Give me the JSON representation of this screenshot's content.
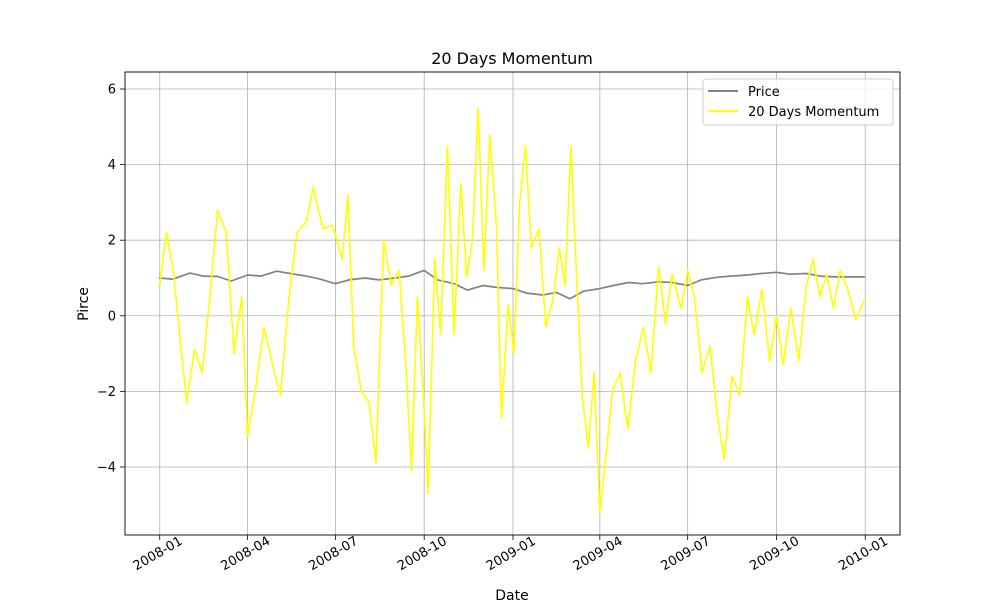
{
  "chart_data": {
    "type": "line",
    "title": "20 Days Momentum",
    "xlabel": "Date",
    "ylabel": "Pirce",
    "xlim": [
      "2007-11-26",
      "2010-02-06"
    ],
    "ylim": [
      -5.8,
      6.45
    ],
    "grid": true,
    "legend_position": "top-right",
    "x_ticks": [
      "2008-01",
      "2008-04",
      "2008-07",
      "2008-10",
      "2009-01",
      "2009-04",
      "2009-07",
      "2009-10",
      "2010-01"
    ],
    "y_ticks": [
      -4,
      -2,
      0,
      2,
      4,
      6
    ],
    "y_tick_labels": [
      "−4",
      "−2",
      "0",
      "2",
      "4",
      "6"
    ],
    "series": [
      {
        "name": "Price",
        "color": "#838478",
        "points": [
          [
            "2008-01-01",
            1.0
          ],
          [
            "2008-01-15",
            0.97
          ],
          [
            "2008-02-01",
            1.13
          ],
          [
            "2008-02-15",
            1.05
          ],
          [
            "2008-03-01",
            1.04
          ],
          [
            "2008-03-15",
            0.92
          ],
          [
            "2008-04-01",
            1.08
          ],
          [
            "2008-04-15",
            1.05
          ],
          [
            "2008-05-01",
            1.18
          ],
          [
            "2008-05-15",
            1.12
          ],
          [
            "2008-06-01",
            1.05
          ],
          [
            "2008-06-15",
            0.97
          ],
          [
            "2008-07-01",
            0.85
          ],
          [
            "2008-07-15",
            0.95
          ],
          [
            "2008-08-01",
            1.0
          ],
          [
            "2008-08-15",
            0.95
          ],
          [
            "2008-09-01",
            1.0
          ],
          [
            "2008-09-15",
            1.05
          ],
          [
            "2008-10-01",
            1.2
          ],
          [
            "2008-10-15",
            0.95
          ],
          [
            "2008-11-01",
            0.85
          ],
          [
            "2008-11-15",
            0.68
          ],
          [
            "2008-12-01",
            0.8
          ],
          [
            "2008-12-15",
            0.75
          ],
          [
            "2009-01-01",
            0.72
          ],
          [
            "2009-01-15",
            0.6
          ],
          [
            "2009-02-01",
            0.55
          ],
          [
            "2009-02-15",
            0.62
          ],
          [
            "2009-03-01",
            0.45
          ],
          [
            "2009-03-15",
            0.65
          ],
          [
            "2009-04-01",
            0.72
          ],
          [
            "2009-04-15",
            0.8
          ],
          [
            "2009-05-01",
            0.88
          ],
          [
            "2009-05-15",
            0.85
          ],
          [
            "2009-06-01",
            0.9
          ],
          [
            "2009-06-15",
            0.88
          ],
          [
            "2009-07-01",
            0.8
          ],
          [
            "2009-07-15",
            0.95
          ],
          [
            "2009-08-01",
            1.02
          ],
          [
            "2009-08-15",
            1.05
          ],
          [
            "2009-09-01",
            1.08
          ],
          [
            "2009-09-15",
            1.12
          ],
          [
            "2009-10-01",
            1.15
          ],
          [
            "2009-10-15",
            1.1
          ],
          [
            "2009-11-01",
            1.12
          ],
          [
            "2009-11-15",
            1.05
          ],
          [
            "2009-12-01",
            1.03
          ],
          [
            "2009-12-31",
            1.03
          ]
        ]
      },
      {
        "name": "20 Days Momentum",
        "color": "#ffff00",
        "points": [
          [
            "2008-01-01",
            0.8
          ],
          [
            "2008-01-08",
            2.2
          ],
          [
            "2008-01-15",
            1.2
          ],
          [
            "2008-01-22",
            -0.6
          ],
          [
            "2008-01-29",
            -2.3
          ],
          [
            "2008-02-06",
            -0.9
          ],
          [
            "2008-02-14",
            -1.5
          ],
          [
            "2008-02-22",
            0.5
          ],
          [
            "2008-03-01",
            2.8
          ],
          [
            "2008-03-10",
            2.2
          ],
          [
            "2008-03-18",
            -1.0
          ],
          [
            "2008-03-26",
            0.5
          ],
          [
            "2008-04-01",
            -3.2
          ],
          [
            "2008-04-10",
            -1.8
          ],
          [
            "2008-04-18",
            -0.3
          ],
          [
            "2008-04-26",
            -1.2
          ],
          [
            "2008-05-05",
            -2.1
          ],
          [
            "2008-05-14",
            0.5
          ],
          [
            "2008-05-22",
            2.2
          ],
          [
            "2008-06-01",
            2.5
          ],
          [
            "2008-06-08",
            3.4
          ],
          [
            "2008-06-18",
            2.3
          ],
          [
            "2008-06-28",
            2.4
          ],
          [
            "2008-07-08",
            1.5
          ],
          [
            "2008-07-14",
            3.2
          ],
          [
            "2008-07-20",
            -0.8
          ],
          [
            "2008-07-28",
            -2.0
          ],
          [
            "2008-08-05",
            -2.3
          ],
          [
            "2008-08-12",
            -3.9
          ],
          [
            "2008-08-20",
            2.0
          ],
          [
            "2008-08-28",
            0.8
          ],
          [
            "2008-09-05",
            1.2
          ],
          [
            "2008-09-12",
            -1.3
          ],
          [
            "2008-09-18",
            -4.1
          ],
          [
            "2008-09-24",
            0.5
          ],
          [
            "2008-10-01",
            -2.5
          ],
          [
            "2008-10-05",
            -4.7
          ],
          [
            "2008-10-12",
            1.5
          ],
          [
            "2008-10-18",
            -0.5
          ],
          [
            "2008-10-25",
            4.5
          ],
          [
            "2008-11-01",
            -0.5
          ],
          [
            "2008-11-08",
            3.5
          ],
          [
            "2008-11-14",
            1.0
          ],
          [
            "2008-11-20",
            2.0
          ],
          [
            "2008-11-26",
            5.5
          ],
          [
            "2008-12-02",
            1.2
          ],
          [
            "2008-12-08",
            4.8
          ],
          [
            "2008-12-15",
            2.3
          ],
          [
            "2008-12-20",
            -2.7
          ],
          [
            "2008-12-27",
            0.3
          ],
          [
            "2009-01-02",
            -1.0
          ],
          [
            "2009-01-08",
            3.0
          ],
          [
            "2009-01-14",
            4.5
          ],
          [
            "2009-01-20",
            1.8
          ],
          [
            "2009-01-28",
            2.3
          ],
          [
            "2009-02-04",
            -0.3
          ],
          [
            "2009-02-12",
            0.5
          ],
          [
            "2009-02-18",
            1.8
          ],
          [
            "2009-02-24",
            0.8
          ],
          [
            "2009-03-02",
            4.5
          ],
          [
            "2009-03-08",
            1.0
          ],
          [
            "2009-03-14",
            -2.2
          ],
          [
            "2009-03-20",
            -3.5
          ],
          [
            "2009-03-26",
            -1.5
          ],
          [
            "2009-04-01",
            -5.2
          ],
          [
            "2009-04-07",
            -3.8
          ],
          [
            "2009-04-14",
            -2.0
          ],
          [
            "2009-04-22",
            -1.5
          ],
          [
            "2009-04-30",
            -3.0
          ],
          [
            "2009-05-08",
            -1.2
          ],
          [
            "2009-05-16",
            -0.3
          ],
          [
            "2009-05-24",
            -1.5
          ],
          [
            "2009-06-01",
            1.3
          ],
          [
            "2009-06-08",
            -0.2
          ],
          [
            "2009-06-15",
            1.1
          ],
          [
            "2009-06-24",
            0.2
          ],
          [
            "2009-07-01",
            1.2
          ],
          [
            "2009-07-08",
            0.5
          ],
          [
            "2009-07-16",
            -1.5
          ],
          [
            "2009-07-24",
            -0.8
          ],
          [
            "2009-08-01",
            -2.7
          ],
          [
            "2009-08-08",
            -3.8
          ],
          [
            "2009-08-16",
            -1.6
          ],
          [
            "2009-08-24",
            -2.1
          ],
          [
            "2009-09-01",
            0.5
          ],
          [
            "2009-09-08",
            -0.5
          ],
          [
            "2009-09-16",
            0.7
          ],
          [
            "2009-09-24",
            -1.2
          ],
          [
            "2009-10-01",
            0.0
          ],
          [
            "2009-10-08",
            -1.3
          ],
          [
            "2009-10-16",
            0.2
          ],
          [
            "2009-10-24",
            -1.2
          ],
          [
            "2009-11-01",
            0.8
          ],
          [
            "2009-11-08",
            1.5
          ],
          [
            "2009-11-15",
            0.5
          ],
          [
            "2009-11-22",
            1.1
          ],
          [
            "2009-11-29",
            0.2
          ],
          [
            "2009-12-06",
            1.2
          ],
          [
            "2009-12-14",
            0.7
          ],
          [
            "2009-12-22",
            -0.1
          ],
          [
            "2009-12-31",
            0.4
          ]
        ]
      }
    ]
  }
}
